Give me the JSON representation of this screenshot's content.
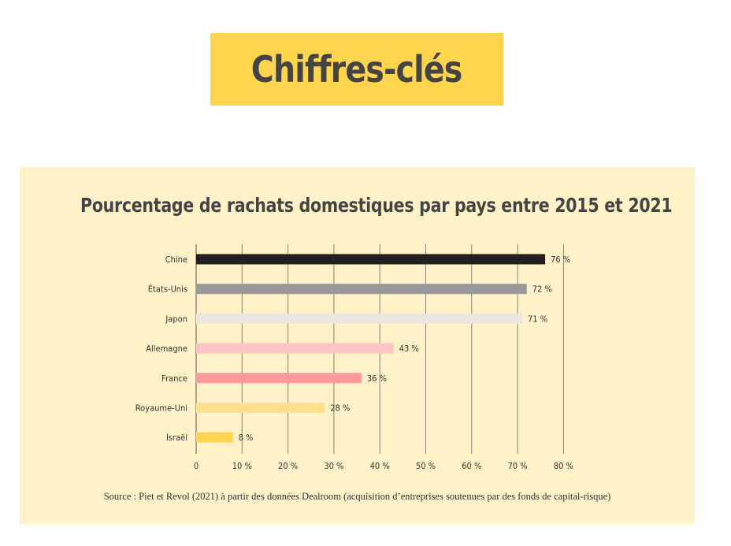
{
  "banner": {
    "title": "Chiffres-clés",
    "color": "#ffd54f"
  },
  "panel": {
    "background": "#fff1c8"
  },
  "chart_data": {
    "type": "bar",
    "orientation": "horizontal",
    "title": "Pourcentage de rachats domestiques par pays entre 2015 et 2021",
    "xlabel": "",
    "ylabel": "",
    "xlim": [
      0,
      80
    ],
    "grid": true,
    "legend": false,
    "x_ticks": [
      "0",
      "10 %",
      "20 %",
      "30 %",
      "40 %",
      "50 %",
      "60 %",
      "70 %",
      "80 %"
    ],
    "categories": [
      "Chine",
      "États-Unis",
      "Japon",
      "Allemagne",
      "France",
      "Royaume-Uni",
      "Israël"
    ],
    "values": [
      76,
      72,
      71,
      43,
      36,
      28,
      8
    ],
    "value_labels": [
      "76 %",
      "72 %",
      "71 %",
      "43 %",
      "36 %",
      "28 %",
      "8 %"
    ],
    "colors": [
      "#231f20",
      "#999999",
      "#ebe6df",
      "#ffc5c5",
      "#ff9a9a",
      "#ffe08a",
      "#ffd54f"
    ]
  },
  "source": "Source : Piet et Revol (2021) à partir des données Dealroom (acquisition d’entreprises soutenues par des fonds de capital-risque)"
}
